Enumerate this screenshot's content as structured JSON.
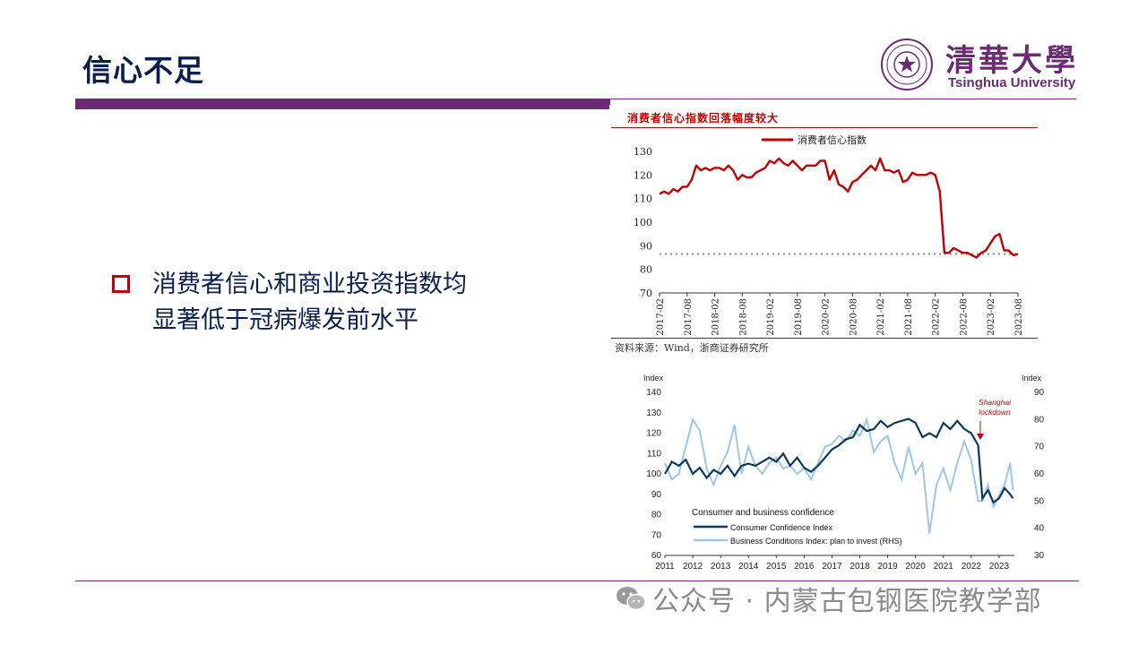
{
  "slide": {
    "title": "信心不足",
    "bullet_lines": [
      "消费者信心和商业投资指数均",
      "显著低于冠病爆发前水平"
    ]
  },
  "logo": {
    "cn": "清華大學",
    "en": "Tsinghua University"
  },
  "watermark": {
    "text": "公众号 · 内蒙古包钢医院教学部",
    "icon": "wechat-icon"
  },
  "colors": {
    "purple": "#6b2b73",
    "navy": "#0b1f4e",
    "red": "#c00000",
    "series_dark": "#0d3a5c",
    "series_light": "#9dc6e8"
  },
  "chart_data": [
    {
      "type": "line",
      "title": "消费者信心指数回落幅度较大",
      "legend": "消费者信心指数",
      "source": "资料来源：Wind，浙商证券研究所",
      "ylim": [
        70,
        130
      ],
      "yticks": [
        70,
        80,
        90,
        100,
        110,
        120,
        130
      ],
      "xticks": [
        "2017-02",
        "2017-08",
        "2018-02",
        "2018-08",
        "2019-02",
        "2019-08",
        "2020-02",
        "2020-08",
        "2021-02",
        "2021-08",
        "2022-02",
        "2022-08",
        "2023-02",
        "2023-08"
      ],
      "reference_line": 86.5,
      "series": [
        {
          "name": "消费者信心指数",
          "x": [
            "2017-02",
            "2017-03",
            "2017-04",
            "2017-05",
            "2017-06",
            "2017-07",
            "2017-08",
            "2017-09",
            "2017-10",
            "2017-11",
            "2017-12",
            "2018-01",
            "2018-02",
            "2018-03",
            "2018-04",
            "2018-05",
            "2018-06",
            "2018-07",
            "2018-08",
            "2018-09",
            "2018-10",
            "2018-11",
            "2018-12",
            "2019-01",
            "2019-02",
            "2019-03",
            "2019-04",
            "2019-05",
            "2019-06",
            "2019-07",
            "2019-08",
            "2019-09",
            "2019-10",
            "2019-11",
            "2019-12",
            "2020-01",
            "2020-02",
            "2020-03",
            "2020-04",
            "2020-05",
            "2020-06",
            "2020-07",
            "2020-08",
            "2020-09",
            "2020-10",
            "2020-11",
            "2020-12",
            "2021-01",
            "2021-02",
            "2021-03",
            "2021-04",
            "2021-05",
            "2021-06",
            "2021-07",
            "2021-08",
            "2021-09",
            "2021-10",
            "2021-11",
            "2021-12",
            "2022-01",
            "2022-02",
            "2022-03",
            "2022-04",
            "2022-05",
            "2022-06",
            "2022-07",
            "2022-08",
            "2022-09",
            "2022-10",
            "2022-11",
            "2022-12",
            "2023-01",
            "2023-02",
            "2023-03",
            "2023-04",
            "2023-05",
            "2023-06",
            "2023-07",
            "2023-08"
          ],
          "values": [
            112,
            113,
            112,
            114,
            113,
            115,
            115,
            118,
            124,
            122,
            123,
            122,
            123,
            123,
            122,
            124,
            122,
            118,
            120,
            119,
            119,
            121,
            122,
            123,
            126,
            125,
            127,
            125,
            124,
            126,
            124,
            122,
            124,
            124,
            124,
            126,
            126,
            118,
            122,
            116,
            115,
            113,
            117,
            118,
            120,
            122,
            124,
            122,
            127,
            122,
            122,
            121,
            122,
            117,
            118,
            121,
            120,
            120,
            120,
            121,
            120,
            113,
            87,
            87,
            89,
            88,
            87,
            87,
            86,
            85,
            87,
            88,
            91,
            94,
            95,
            88,
            88,
            86,
            86.5
          ]
        }
      ]
    },
    {
      "type": "line",
      "title": "Consumer and business confidence",
      "ylabel_left": "Index",
      "ylabel_right": "Index",
      "ylim_left": [
        60,
        140
      ],
      "ylim_right": [
        30,
        90
      ],
      "yticks_left": [
        60,
        70,
        80,
        90,
        100,
        110,
        120,
        130,
        140
      ],
      "yticks_right": [
        30,
        40,
        50,
        60,
        70,
        80,
        90
      ],
      "xticks": [
        "2011",
        "2012",
        "2013",
        "2014",
        "2015",
        "2016",
        "2017",
        "2018",
        "2019",
        "2020",
        "2021",
        "2022",
        "2023"
      ],
      "annotation": [
        "Shanghai",
        "lockdown"
      ],
      "series": [
        {
          "name": "Consumer Confidence Index",
          "axis": "left",
          "x": [
            2011.0,
            2011.25,
            2011.5,
            2011.75,
            2012.0,
            2012.25,
            2012.5,
            2012.75,
            2013.0,
            2013.25,
            2013.5,
            2013.75,
            2014.0,
            2014.25,
            2014.5,
            2014.75,
            2015.0,
            2015.25,
            2015.5,
            2015.75,
            2016.0,
            2016.25,
            2016.5,
            2016.75,
            2017.0,
            2017.25,
            2017.5,
            2017.75,
            2018.0,
            2018.25,
            2018.5,
            2018.75,
            2019.0,
            2019.25,
            2019.5,
            2019.75,
            2020.0,
            2020.25,
            2020.5,
            2020.75,
            2021.0,
            2021.25,
            2021.5,
            2021.75,
            2022.0,
            2022.25,
            2022.4,
            2022.6,
            2022.8,
            2023.0,
            2023.2,
            2023.4,
            2023.5
          ],
          "values": [
            100,
            106,
            104,
            107,
            100,
            103,
            98,
            102,
            100,
            104,
            99,
            104,
            105,
            104,
            106,
            108,
            106,
            110,
            104,
            108,
            103,
            101,
            104,
            108,
            112,
            114,
            117,
            118,
            124,
            121,
            122,
            126,
            123,
            125,
            126,
            127,
            125,
            118,
            120,
            118,
            125,
            122,
            126,
            122,
            120,
            114,
            88,
            92,
            86,
            88,
            93,
            90,
            88
          ]
        },
        {
          "name": "Business Conditions Index: plan to invest (RHS)",
          "axis": "right",
          "x": [
            2011.0,
            2011.25,
            2011.5,
            2011.75,
            2012.0,
            2012.25,
            2012.5,
            2012.75,
            2013.0,
            2013.25,
            2013.5,
            2013.75,
            2014.0,
            2014.25,
            2014.5,
            2014.75,
            2015.0,
            2015.25,
            2015.5,
            2015.75,
            2016.0,
            2016.25,
            2016.5,
            2016.75,
            2017.0,
            2017.25,
            2017.5,
            2017.75,
            2018.0,
            2018.25,
            2018.5,
            2018.75,
            2019.0,
            2019.25,
            2019.5,
            2019.75,
            2020.0,
            2020.25,
            2020.5,
            2020.75,
            2021.0,
            2021.25,
            2021.5,
            2021.75,
            2022.0,
            2022.25,
            2022.4,
            2022.6,
            2022.8,
            2023.0,
            2023.2,
            2023.4,
            2023.5
          ],
          "values": [
            64,
            58,
            60,
            70,
            80,
            76,
            62,
            56,
            63,
            68,
            78,
            60,
            70,
            63,
            60,
            64,
            66,
            62,
            63,
            60,
            62,
            58,
            64,
            70,
            71,
            74,
            72,
            76,
            74,
            80,
            68,
            72,
            74,
            64,
            58,
            70,
            60,
            64,
            38,
            56,
            62,
            54,
            64,
            72,
            65,
            50,
            50,
            56,
            48,
            52,
            56,
            64,
            54
          ]
        }
      ]
    }
  ]
}
